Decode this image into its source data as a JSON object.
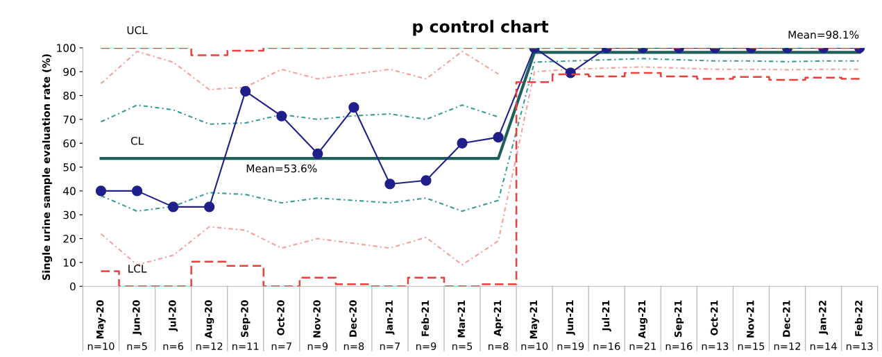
{
  "chart_data": {
    "type": "line",
    "title": "p control chart",
    "ylabel": "Single urine sample evaluation rate (%)",
    "categories": [
      "May-20",
      "Jun-20",
      "Jul-20",
      "Aug-20",
      "Sep-20",
      "Oct-20",
      "Nov-20",
      "Dec-20",
      "Jan-21",
      "Feb-21",
      "Mar-21",
      "Apr-21",
      "May-21",
      "Jun-21",
      "Jul-21",
      "Aug-21",
      "Sep-21",
      "Oct-21",
      "Nov-21",
      "Dec-21",
      "Jan-22",
      "Feb-22"
    ],
    "ylim": [
      0,
      100
    ],
    "yticks": [
      0,
      10,
      20,
      30,
      40,
      50,
      60,
      70,
      80,
      90,
      100
    ],
    "grid": false,
    "legend": false,
    "series": [
      {
        "type": "step",
        "color": "#e8413c",
        "line_style": "dashed",
        "marker": "none",
        "values": [
          100,
          100,
          100,
          96.9,
          98.8,
          100,
          100,
          100,
          100,
          100,
          100,
          100,
          100,
          100,
          100,
          100,
          100,
          100,
          100,
          100,
          100,
          100
        ]
      },
      {
        "type": "step",
        "color": "#e8413c",
        "line_style": "dashed",
        "marker": "none",
        "values": [
          6.3,
          0,
          0,
          10.3,
          8.6,
          0,
          3.6,
          0.9,
          0,
          3.6,
          0,
          0.9,
          85.6,
          88.9,
          88,
          89.5,
          88,
          87,
          87.8,
          86.6,
          87.5,
          87
        ]
      },
      {
        "type": "line",
        "color": "#f4a09c",
        "line_style": "dashdot",
        "marker": "none",
        "values": [
          85,
          98.5,
          94,
          82.5,
          83.5,
          91,
          87,
          89,
          91,
          87,
          98.5,
          89,
          null,
          null,
          null,
          null,
          null,
          null,
          null,
          null,
          null,
          null
        ]
      },
      {
        "type": "line",
        "color": "#f4a09c",
        "line_style": "dashdot",
        "marker": "none",
        "values": [
          22,
          9,
          13,
          25,
          23.5,
          16,
          20,
          18,
          16,
          20.5,
          9,
          19,
          90,
          91,
          91.5,
          92,
          91.5,
          91,
          91,
          90.8,
          91,
          91
        ]
      },
      {
        "type": "line",
        "color": "#3a9a94",
        "line_style": "dashdot",
        "marker": "none",
        "values": [
          69,
          76,
          74,
          68,
          68.5,
          72,
          70,
          71.5,
          72.3,
          70,
          76,
          71,
          null,
          null,
          null,
          null,
          null,
          null,
          null,
          null,
          null,
          null
        ]
      },
      {
        "type": "line",
        "color": "#3a9a94",
        "line_style": "dashdot",
        "marker": "none",
        "values": [
          38,
          31.5,
          33.5,
          39.3,
          38.5,
          35,
          37,
          36,
          35,
          37,
          31.5,
          36,
          94,
          94.5,
          95,
          95.5,
          95,
          94.5,
          94.5,
          94.2,
          94.5,
          94.5
        ]
      },
      {
        "type": "line",
        "color": "#1e5f5c",
        "line_style": "solid",
        "marker": "none",
        "values": [
          53.6,
          53.6,
          53.6,
          53.6,
          53.6,
          53.6,
          53.6,
          53.6,
          53.6,
          53.6,
          53.6,
          53.6,
          98.1,
          98.1,
          98.1,
          98.1,
          98.1,
          98.1,
          98.1,
          98.1,
          98.1,
          98.1
        ]
      },
      {
        "type": "line",
        "color": "#1f1f8c",
        "line_style": "solid",
        "marker": "circle",
        "values": [
          40,
          40,
          33.3,
          33.3,
          81.8,
          71.4,
          55.6,
          75,
          42.9,
          44.4,
          60,
          62.5,
          100,
          89.5,
          100,
          100,
          100,
          100,
          100,
          100,
          100,
          100
        ]
      }
    ],
    "annotations": [
      {
        "text": "UCL",
        "x": "Jun-20",
        "y": 100
      },
      {
        "text": "CL",
        "x": "Jun-20",
        "y": 53.6
      },
      {
        "text": "LCL",
        "x": "Jun-20",
        "y": 0
      },
      {
        "text": "Mean=53.6%",
        "x": "Oct-20",
        "y": 53.6
      },
      {
        "text": "Mean=98.1%",
        "x": "Jan-22",
        "y": 98.1
      },
      "n=10",
      "n=5",
      "n=6",
      "n=12",
      "n=11",
      "n=7",
      "n=9",
      "n=8",
      "n=7",
      "n=9",
      "n=5",
      "n=8",
      "n=10",
      "n=19",
      "n=16",
      "n=21",
      "n=16",
      "n=13",
      "n=15",
      "n=12",
      "n=14",
      "n=13"
    ]
  }
}
